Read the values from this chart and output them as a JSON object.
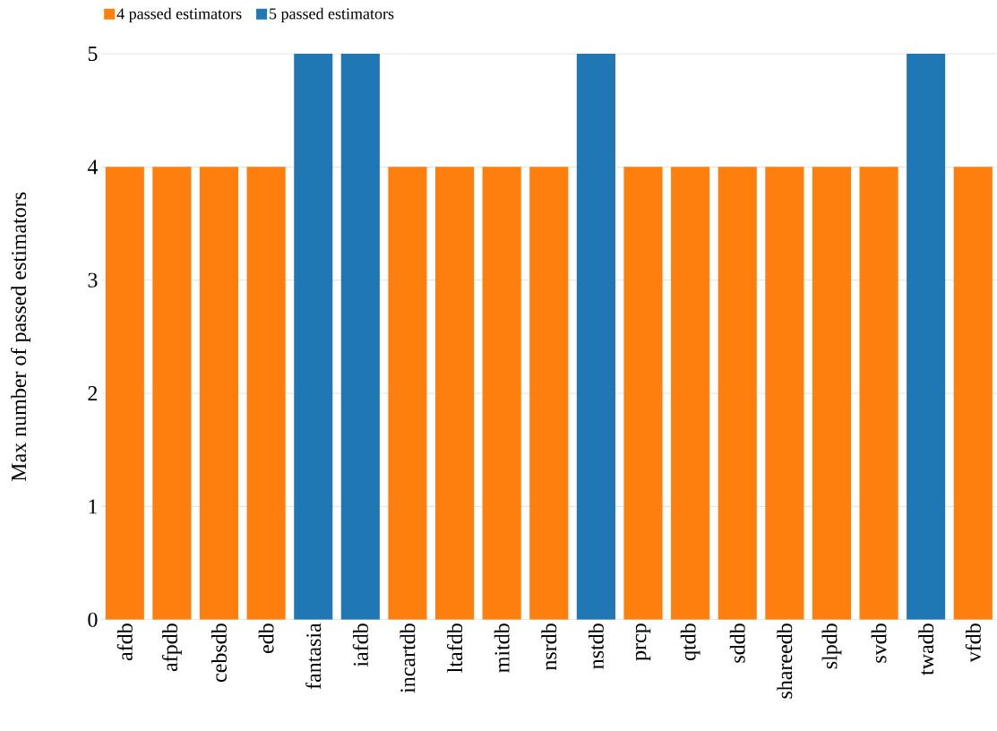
{
  "chart_data": {
    "type": "bar",
    "ylabel": "Max number of passed estimators",
    "categories": [
      "afdb",
      "afpdb",
      "cebsdb",
      "edb",
      "fantasia",
      "iafdb",
      "incartdb",
      "ltafdb",
      "mitdb",
      "nsrdb",
      "nstdb",
      "prcp",
      "qtdb",
      "sddb",
      "shareedb",
      "slpdb",
      "svdb",
      "twadb",
      "vfdb"
    ],
    "series": [
      {
        "name": "4 passed estimators",
        "color": "#ff7f0e",
        "values": [
          4,
          4,
          4,
          4,
          null,
          null,
          4,
          4,
          4,
          4,
          null,
          4,
          4,
          4,
          4,
          4,
          4,
          null,
          4
        ]
      },
      {
        "name": "5 passed estimators",
        "color": "#1f77b4",
        "values": [
          null,
          null,
          null,
          null,
          5,
          5,
          null,
          null,
          null,
          null,
          5,
          null,
          null,
          null,
          null,
          null,
          null,
          5,
          null
        ]
      }
    ],
    "ylim": [
      0,
      5
    ],
    "yticks": [
      0,
      1,
      2,
      3,
      4,
      5
    ],
    "grid": "y",
    "legend": "top left"
  }
}
